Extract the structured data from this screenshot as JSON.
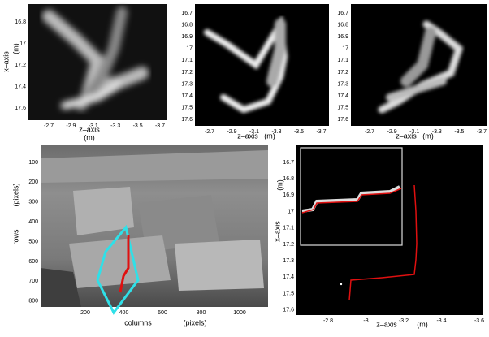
{
  "panels": [
    {
      "x_label": "z–axis",
      "x_unit": "(m)",
      "y_label": "x–axis",
      "y_unit": "(m)",
      "x_ticks": [
        "-2.7",
        "-2.9",
        "-3.1",
        "-3.3",
        "-3.5",
        "-3.7"
      ],
      "y_ticks": [
        "16.8",
        "17",
        "17.2",
        "17.4",
        "17.6"
      ]
    },
    {
      "x_label": "z–axis",
      "x_unit": "(m)",
      "x_ticks": [
        "-2.7",
        "-2.9",
        "-3.1",
        "-3.3",
        "-3.5",
        "-3.7"
      ],
      "y_ticks": [
        "16.7",
        "16.8",
        "16.9",
        "17",
        "17.1",
        "17.2",
        "17.3",
        "17.4",
        "17.5",
        "17.6"
      ]
    },
    {
      "x_label": "z–axis",
      "x_unit": "(m)",
      "x_ticks": [
        "-2.7",
        "-2.9",
        "-3.1",
        "-3.3",
        "-3.5",
        "-3.7"
      ],
      "y_ticks": [
        "16.7",
        "16.8",
        "16.9",
        "17",
        "17.1",
        "17.2",
        "17.3",
        "17.4",
        "17.5",
        "17.6"
      ]
    },
    {
      "x_label": "columns",
      "x_unit": "(pixels)",
      "y_label": "rows",
      "y_unit": "(pixels)",
      "x_ticks": [
        "200",
        "400",
        "600",
        "800",
        "1000"
      ],
      "y_ticks": [
        "100",
        "200",
        "300",
        "400",
        "500",
        "600",
        "700",
        "800"
      ]
    },
    {
      "x_label": "z–axis",
      "x_unit": "(m)",
      "y_label": "x–axis",
      "y_unit": "(m)",
      "x_ticks": [
        "-2.8",
        "-3",
        "-3.2",
        "-3.4",
        "-3.6"
      ],
      "y_ticks": [
        "16.7",
        "16.8",
        "16.9",
        "17",
        "17.1",
        "17.2",
        "17.3",
        "17.4",
        "17.5",
        "17.6"
      ]
    }
  ]
}
